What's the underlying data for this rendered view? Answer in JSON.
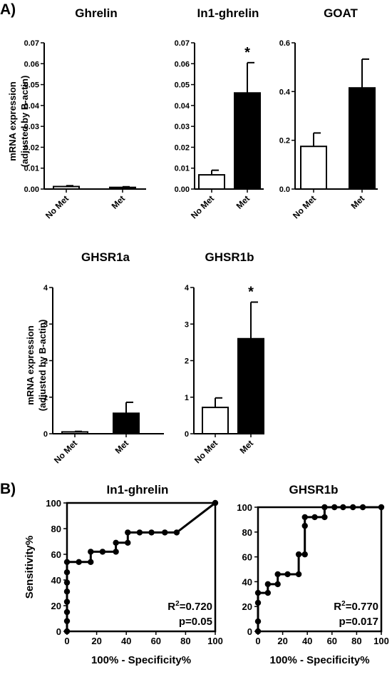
{
  "panels": {
    "a": "A)",
    "b": "B)"
  },
  "shared": {
    "ylabel_line1": "mRNA expression",
    "ylabel_line2": "(adjusted by B-actin)",
    "roc_xlabel": "100% - Specificity%",
    "roc_ylabel": "Sensitivity%"
  },
  "chart_data": [
    {
      "type": "bar",
      "title": "Ghrelin",
      "categories": [
        "No Met",
        "Met"
      ],
      "values": [
        0.0012,
        0.0008
      ],
      "errors": [
        0.0004,
        0.0003
      ],
      "ylim": [
        0,
        0.07
      ],
      "yticks": [
        "0.00",
        "0.01",
        "0.02",
        "0.03",
        "0.04",
        "0.05",
        "0.06",
        "0.07"
      ],
      "significance": [
        "",
        ""
      ]
    },
    {
      "type": "bar",
      "title": "In1-ghrelin",
      "categories": [
        "No Met",
        "Met"
      ],
      "values": [
        0.0068,
        0.046
      ],
      "errors": [
        0.0022,
        0.0145
      ],
      "ylim": [
        0,
        0.07
      ],
      "yticks": [
        "0.00",
        "0.01",
        "0.02",
        "0.03",
        "0.04",
        "0.05",
        "0.06",
        "0.07"
      ],
      "significance": [
        "",
        "*"
      ]
    },
    {
      "type": "bar",
      "title": "GOAT",
      "categories": [
        "No Met",
        "Met"
      ],
      "values": [
        0.175,
        0.415
      ],
      "errors": [
        0.055,
        0.118
      ],
      "ylim": [
        0,
        0.6
      ],
      "yticks": [
        "0.0",
        "0.2",
        "0.4",
        "0.6"
      ],
      "significance": [
        "",
        ""
      ]
    },
    {
      "type": "bar",
      "title": "GHSR1a",
      "categories": [
        "No Met",
        "Met"
      ],
      "values": [
        0.05,
        0.56
      ],
      "errors": [
        0.015,
        0.3
      ],
      "ylim": [
        0,
        4
      ],
      "yticks": [
        "0",
        "1",
        "2",
        "3",
        "4"
      ],
      "significance": [
        "",
        ""
      ]
    },
    {
      "type": "bar",
      "title": "GHSR1b",
      "categories": [
        "No Met",
        "Met"
      ],
      "values": [
        0.72,
        2.6
      ],
      "errors": [
        0.26,
        1.0
      ],
      "ylim": [
        0,
        4
      ],
      "yticks": [
        "0",
        "1",
        "2",
        "3",
        "4"
      ],
      "significance": [
        "",
        "*"
      ]
    },
    {
      "type": "line",
      "title": "In1-ghrelin",
      "xlabel": "100% - Specificity%",
      "ylabel": "Sensitivity%",
      "xlim": [
        0,
        100
      ],
      "ylim": [
        0,
        100
      ],
      "xticks": [
        "0",
        "20",
        "40",
        "60",
        "80",
        "100"
      ],
      "yticks": [
        "0",
        "20",
        "40",
        "60",
        "80",
        "100"
      ],
      "x": [
        0,
        0,
        0,
        0,
        0,
        0,
        0,
        0,
        8,
        16,
        16,
        24,
        33,
        33,
        41,
        41,
        49,
        57,
        66,
        74,
        100
      ],
      "y": [
        0,
        8,
        15,
        23,
        31,
        38,
        46,
        54,
        54,
        54,
        62,
        62,
        62,
        69,
        69,
        77,
        77,
        77,
        77,
        77,
        100
      ],
      "reference_line": true,
      "stats": {
        "r2_label": "R",
        "r2_sup": "2",
        "r2_value": "=0.720",
        "p": "p=0.05"
      }
    },
    {
      "type": "line",
      "title": "GHSR1b",
      "xlabel": "100% - Specificity%",
      "ylabel": "",
      "xlim": [
        0,
        100
      ],
      "ylim": [
        0,
        100
      ],
      "xticks": [
        "0",
        "20",
        "40",
        "60",
        "80",
        "100"
      ],
      "yticks": [
        "0",
        "20",
        "40",
        "60",
        "80",
        "100"
      ],
      "x": [
        0,
        0,
        0,
        0,
        8,
        8,
        16,
        16,
        24,
        33,
        33,
        38,
        38,
        38,
        46,
        54,
        54,
        62,
        69,
        77,
        85,
        100
      ],
      "y": [
        0,
        8,
        23,
        31,
        31,
        38,
        38,
        46,
        46,
        46,
        62,
        62,
        85,
        92,
        92,
        92,
        100,
        100,
        100,
        100,
        100,
        100
      ],
      "reference_line": false,
      "stats": {
        "r2_label": "R",
        "r2_sup": "2",
        "r2_value": "=0.770",
        "p": "p=0.017"
      }
    }
  ]
}
